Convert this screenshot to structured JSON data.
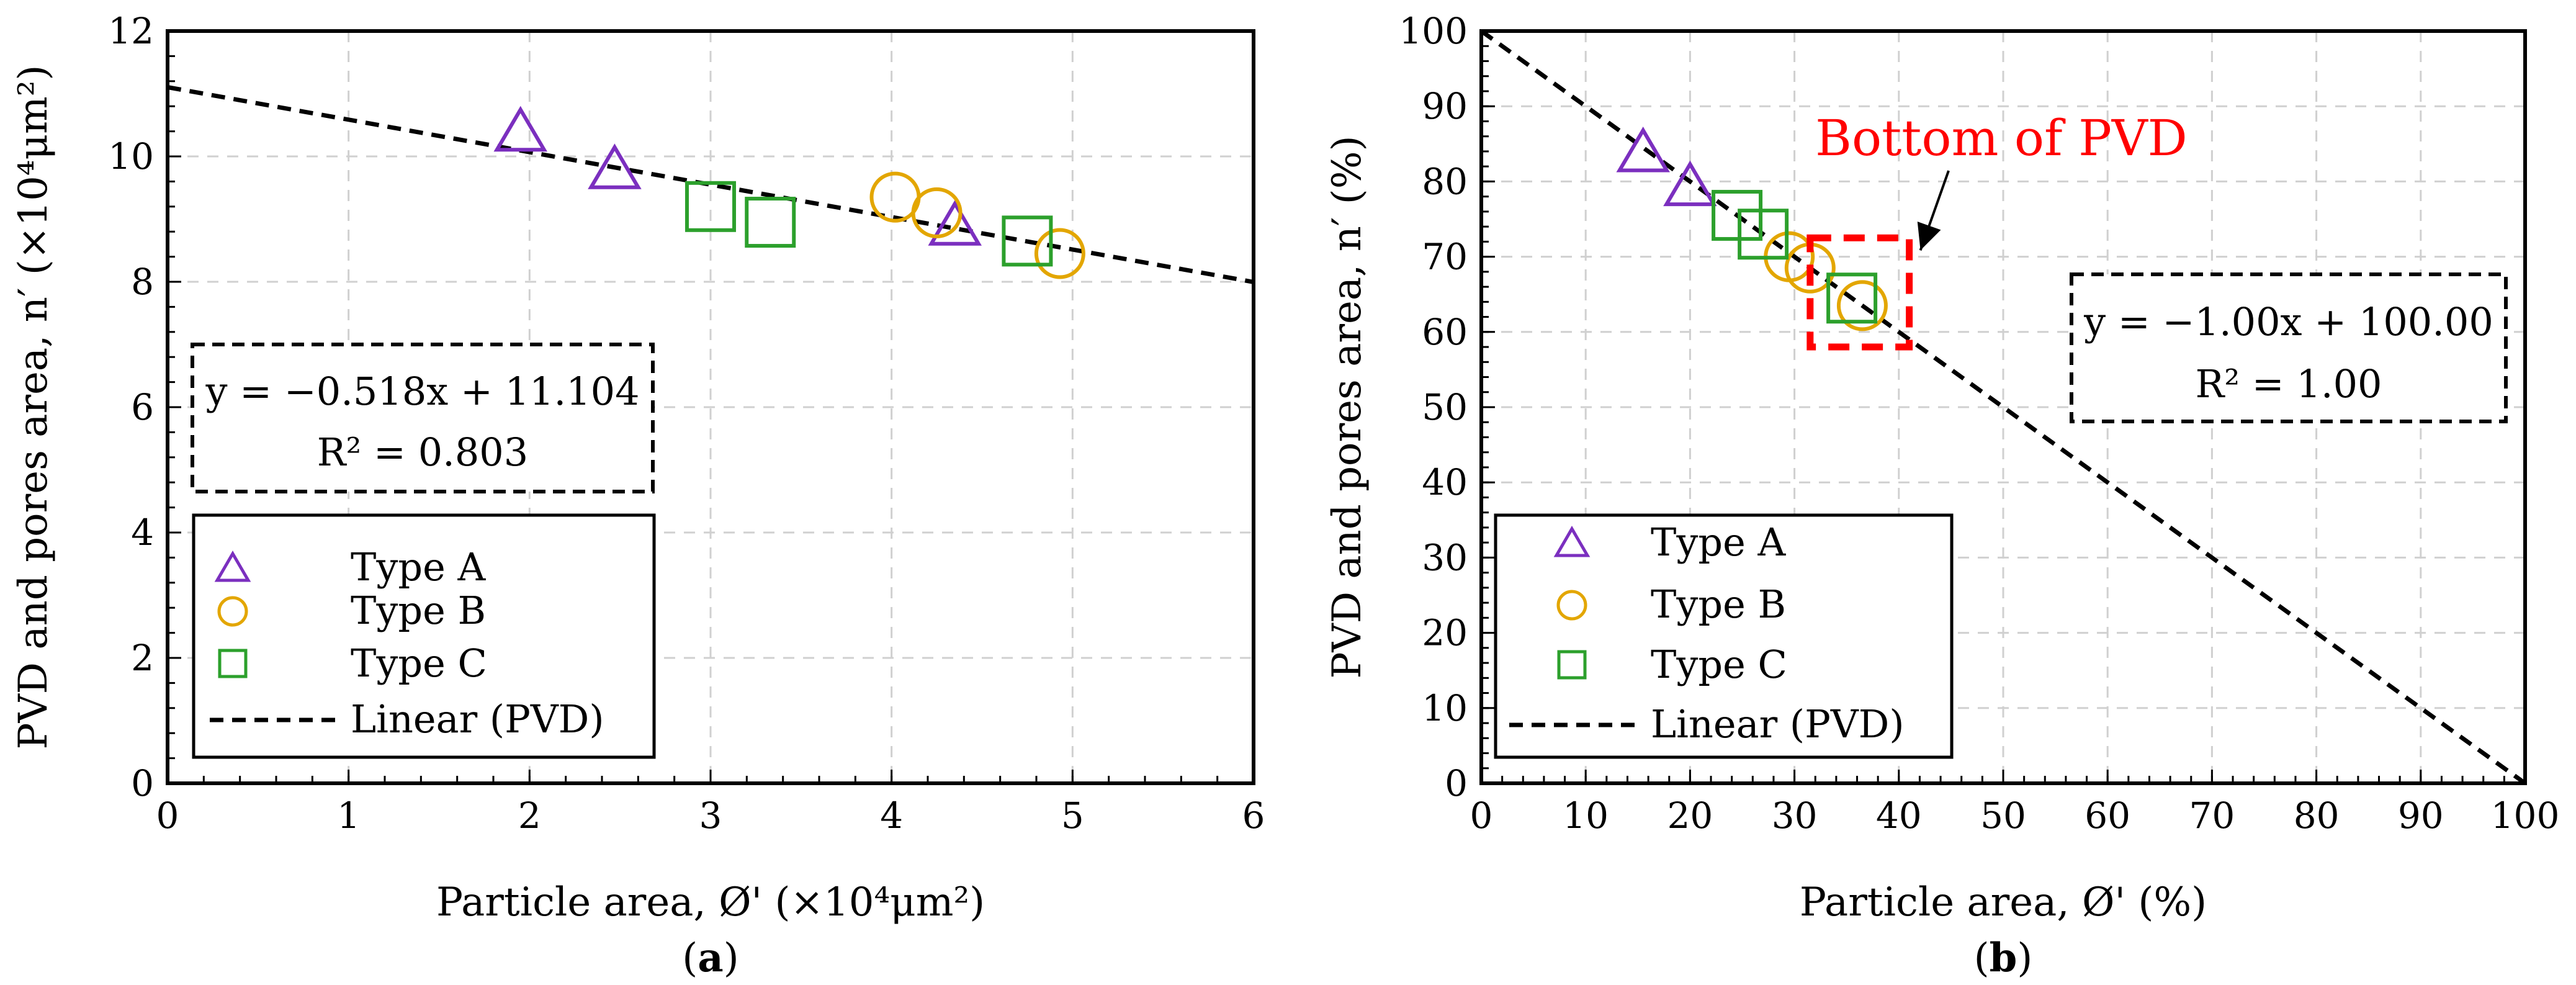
{
  "chart_data": [
    {
      "type": "scatter",
      "panel_label": "(a)",
      "panel_letter": "a",
      "xlabel": "Particle area, Ø' (×10⁴μm²)",
      "ylabel": "PVD and pores area, n′ (×10⁴μm²)",
      "xlim": [
        0,
        6
      ],
      "ylim": [
        0,
        12
      ],
      "xticks": [
        0,
        1,
        2,
        3,
        4,
        5,
        6
      ],
      "yticks": [
        0,
        2,
        4,
        6,
        8,
        10,
        12
      ],
      "grid": true,
      "series": [
        {
          "name": "Type A",
          "marker": "triangle",
          "color": "#7b2fbf",
          "x": [
            1.95,
            2.47,
            4.35
          ],
          "y": [
            10.35,
            9.75,
            8.85
          ]
        },
        {
          "name": "Type B",
          "marker": "circle",
          "color": "#e3a600",
          "x": [
            4.02,
            4.25,
            4.93
          ],
          "y": [
            9.35,
            9.1,
            8.45
          ]
        },
        {
          "name": "Type C",
          "marker": "square",
          "color": "#2ca02c",
          "x": [
            3.0,
            3.33,
            4.75
          ],
          "y": [
            9.2,
            8.95,
            8.65
          ]
        }
      ],
      "fit": {
        "name": "Linear (PVD)",
        "slope": -0.518,
        "intercept": 11.104,
        "equation": "y = −0.518x + 11.104",
        "r2": "R² = 0.803"
      },
      "legend": {
        "position": "bottom-left",
        "entries": [
          "Type A",
          "Type B",
          "Type C",
          "Linear (PVD)"
        ]
      }
    },
    {
      "type": "scatter",
      "panel_label": "(b)",
      "panel_letter": "b",
      "xlabel": "Particle area, Ø' (%)",
      "ylabel": "PVD and pores area, n′ (%)",
      "xlim": [
        0,
        100
      ],
      "ylim": [
        0,
        100
      ],
      "xticks": [
        0,
        10,
        20,
        30,
        40,
        50,
        60,
        70,
        80,
        90,
        100
      ],
      "yticks": [
        0,
        10,
        20,
        30,
        40,
        50,
        60,
        70,
        80,
        90,
        100
      ],
      "grid": true,
      "series": [
        {
          "name": "Type A",
          "marker": "triangle",
          "color": "#7b2fbf",
          "x": [
            15.5,
            20.0
          ],
          "y": [
            83.5,
            79.0
          ]
        },
        {
          "name": "Type B",
          "marker": "circle",
          "color": "#e3a600",
          "x": [
            29.5,
            31.5,
            36.5
          ],
          "y": [
            70.0,
            68.5,
            63.5
          ]
        },
        {
          "name": "Type C",
          "marker": "square",
          "color": "#2ca02c",
          "x": [
            24.5,
            27.0,
            35.5
          ],
          "y": [
            75.5,
            73.0,
            64.5
          ]
        }
      ],
      "fit": {
        "name": "Linear (PVD)",
        "slope": -1.0,
        "intercept": 100.0,
        "equation": "y = −1.00x + 100.00",
        "r2": "R² = 1.00"
      },
      "annotation": {
        "text": "Bottom of PVD",
        "color": "#ff0000",
        "target_x": [
          31.5,
          41.0
        ],
        "target_y": [
          58.0,
          72.5
        ]
      },
      "legend": {
        "position": "bottom-left",
        "entries": [
          "Type A",
          "Type B",
          "Type C",
          "Linear (PVD)"
        ]
      }
    }
  ]
}
